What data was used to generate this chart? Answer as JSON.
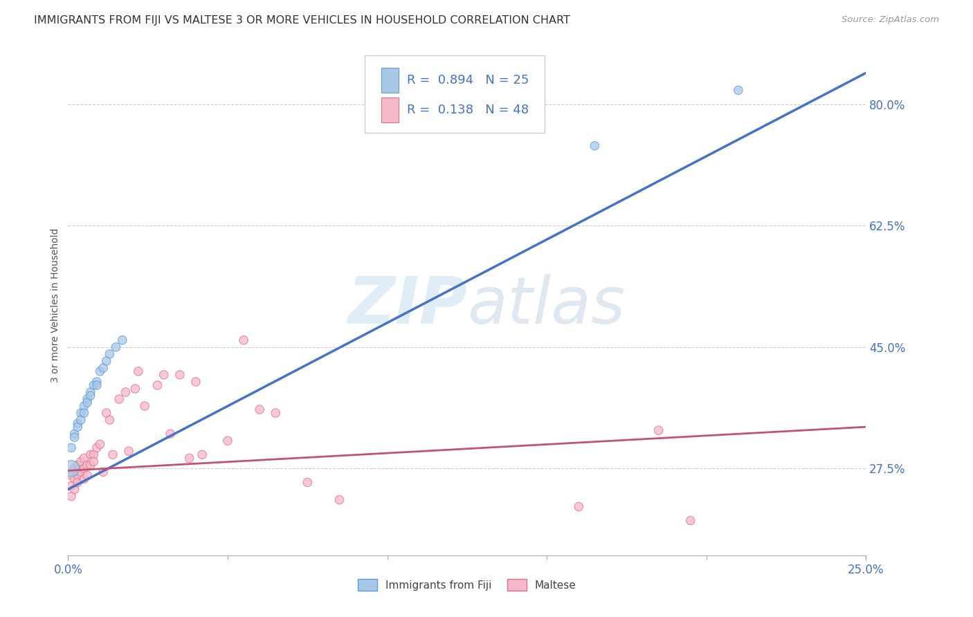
{
  "title": "IMMIGRANTS FROM FIJI VS MALTESE 3 OR MORE VEHICLES IN HOUSEHOLD CORRELATION CHART",
  "source": "Source: ZipAtlas.com",
  "label_color": "#4472c4",
  "ylabel": "3 or more Vehicles in Household",
  "watermark_zip": "ZIP",
  "watermark_atlas": "atlas",
  "x_min": 0.0,
  "x_max": 0.25,
  "y_min": 0.15,
  "y_max": 0.87,
  "yticks": [
    0.275,
    0.45,
    0.625,
    0.8
  ],
  "ytick_labels": [
    "27.5%",
    "45.0%",
    "62.5%",
    "80.0%"
  ],
  "fiji_color": "#a8c8e8",
  "fiji_edge": "#5b9bd5",
  "maltese_color": "#f4b8c8",
  "maltese_edge": "#e07090",
  "fiji_R": 0.894,
  "fiji_N": 25,
  "maltese_R": 0.138,
  "maltese_N": 48,
  "fiji_line_color": "#4472c4",
  "maltese_line_color": "#c45078",
  "legend_color": "#4472c4",
  "fiji_line_x0": 0.0,
  "fiji_line_y0": 0.245,
  "fiji_line_x1": 0.25,
  "fiji_line_y1": 0.845,
  "maltese_line_x0": 0.0,
  "maltese_line_y0": 0.272,
  "maltese_line_x1": 0.25,
  "maltese_line_y1": 0.335,
  "fiji_x": [
    0.001,
    0.001,
    0.002,
    0.002,
    0.003,
    0.003,
    0.004,
    0.004,
    0.005,
    0.005,
    0.006,
    0.006,
    0.007,
    0.007,
    0.008,
    0.009,
    0.009,
    0.01,
    0.011,
    0.012,
    0.013,
    0.015,
    0.017,
    0.165,
    0.21
  ],
  "fiji_y": [
    0.305,
    0.275,
    0.325,
    0.32,
    0.34,
    0.335,
    0.355,
    0.345,
    0.365,
    0.355,
    0.375,
    0.37,
    0.385,
    0.38,
    0.395,
    0.4,
    0.395,
    0.415,
    0.42,
    0.43,
    0.44,
    0.45,
    0.46,
    0.74,
    0.82
  ],
  "fiji_sizes": [
    80,
    280,
    80,
    80,
    80,
    80,
    80,
    80,
    80,
    80,
    80,
    80,
    80,
    80,
    80,
    80,
    80,
    80,
    80,
    80,
    80,
    80,
    80,
    80,
    80
  ],
  "maltese_x": [
    0.001,
    0.001,
    0.001,
    0.002,
    0.002,
    0.002,
    0.003,
    0.003,
    0.003,
    0.004,
    0.004,
    0.005,
    0.005,
    0.005,
    0.006,
    0.006,
    0.007,
    0.007,
    0.008,
    0.008,
    0.009,
    0.01,
    0.011,
    0.012,
    0.013,
    0.014,
    0.016,
    0.018,
    0.019,
    0.021,
    0.022,
    0.024,
    0.028,
    0.03,
    0.032,
    0.035,
    0.038,
    0.04,
    0.042,
    0.05,
    0.055,
    0.06,
    0.065,
    0.075,
    0.085,
    0.16,
    0.185,
    0.195
  ],
  "maltese_y": [
    0.265,
    0.25,
    0.235,
    0.275,
    0.26,
    0.245,
    0.28,
    0.265,
    0.255,
    0.285,
    0.27,
    0.29,
    0.275,
    0.26,
    0.28,
    0.265,
    0.295,
    0.28,
    0.295,
    0.285,
    0.305,
    0.31,
    0.27,
    0.355,
    0.345,
    0.295,
    0.375,
    0.385,
    0.3,
    0.39,
    0.415,
    0.365,
    0.395,
    0.41,
    0.325,
    0.41,
    0.29,
    0.4,
    0.295,
    0.315,
    0.46,
    0.36,
    0.355,
    0.255,
    0.23,
    0.22,
    0.33,
    0.2
  ],
  "maltese_sizes": [
    80,
    80,
    80,
    80,
    80,
    80,
    80,
    80,
    80,
    80,
    80,
    80,
    80,
    80,
    80,
    80,
    80,
    80,
    80,
    80,
    80,
    80,
    80,
    80,
    80,
    80,
    80,
    80,
    80,
    80,
    80,
    80,
    80,
    80,
    80,
    80,
    80,
    80,
    80,
    80,
    80,
    80,
    80,
    80,
    80,
    80,
    80,
    80
  ],
  "background_color": "#ffffff",
  "grid_color": "#cccccc",
  "title_fontsize": 11.5,
  "source_fontsize": 9.5
}
